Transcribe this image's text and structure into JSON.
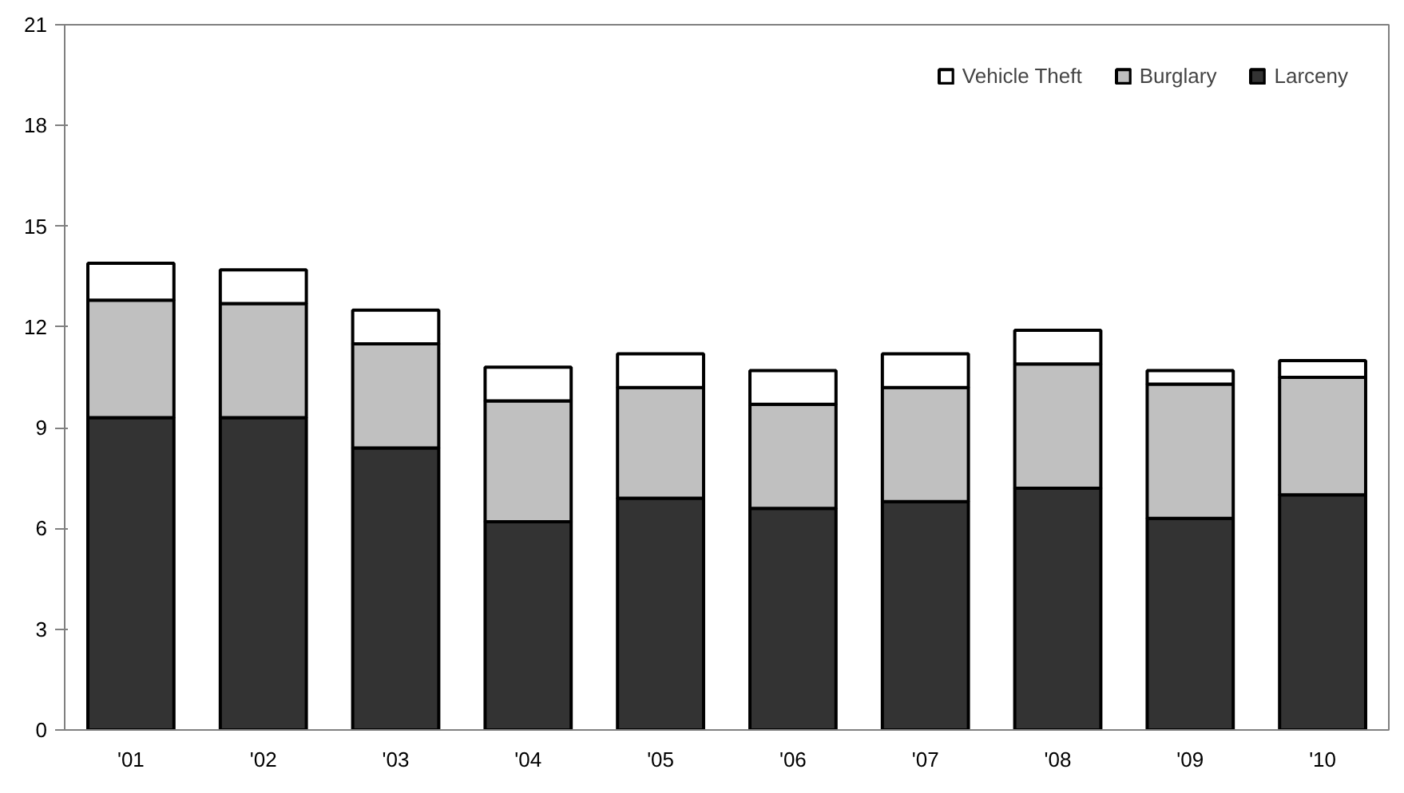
{
  "chart_data": {
    "type": "bar",
    "stacked": true,
    "categories": [
      "'01",
      "'02",
      "'03",
      "'04",
      "'05",
      "'06",
      "'07",
      "'08",
      "'09",
      "'10"
    ],
    "series": [
      {
        "name": "Larceny",
        "color": "#333333",
        "values": [
          9.3,
          9.3,
          8.4,
          6.2,
          6.9,
          6.6,
          6.8,
          7.2,
          6.3,
          7.0
        ]
      },
      {
        "name": "Burglary",
        "color": "#c0c0c0",
        "values": [
          3.5,
          3.4,
          3.1,
          3.6,
          3.3,
          3.1,
          3.4,
          3.7,
          4.0,
          3.5
        ]
      },
      {
        "name": "Vehicle Theft",
        "color": "#ffffff",
        "values": [
          1.1,
          1.0,
          1.0,
          1.0,
          1.0,
          1.0,
          1.0,
          1.0,
          0.4,
          0.5
        ]
      }
    ],
    "ylim": [
      0,
      21
    ],
    "yticks": [
      0,
      3,
      6,
      9,
      12,
      15,
      18,
      21
    ],
    "grid": false,
    "legend": "top right"
  }
}
